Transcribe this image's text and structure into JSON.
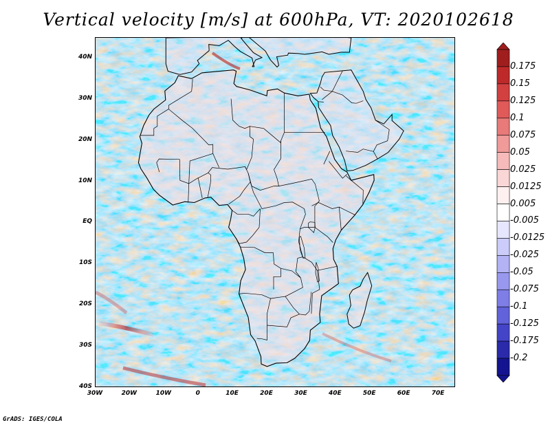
{
  "title": "Vertical velocity [m/s] at 600hPa, VT: 2020102618",
  "footer": "GrADS: IGES/COLA",
  "map": {
    "region": "Africa",
    "variable": "vertical velocity",
    "level": "600hPa",
    "lon_range": [
      -30,
      75
    ],
    "lat_range": [
      -40,
      45
    ],
    "lat_labels": [
      {
        "lat": 40,
        "label": "40N"
      },
      {
        "lat": 30,
        "label": "30N"
      },
      {
        "lat": 20,
        "label": "20N"
      },
      {
        "lat": 10,
        "label": "10N"
      },
      {
        "lat": 0,
        "label": "EQ"
      },
      {
        "lat": -10,
        "label": "10S"
      },
      {
        "lat": -20,
        "label": "20S"
      },
      {
        "lat": -30,
        "label": "30S"
      },
      {
        "lat": -40,
        "label": "40S"
      }
    ],
    "lon_labels": [
      {
        "lon": -30,
        "label": "30W"
      },
      {
        "lon": -20,
        "label": "20W"
      },
      {
        "lon": -10,
        "label": "10W"
      },
      {
        "lon": 0,
        "label": "0"
      },
      {
        "lon": 10,
        "label": "10E"
      },
      {
        "lon": 20,
        "label": "20E"
      },
      {
        "lon": 30,
        "label": "30E"
      },
      {
        "lon": 40,
        "label": "40E"
      },
      {
        "lon": 50,
        "label": "50E"
      },
      {
        "lon": 60,
        "label": "60E"
      },
      {
        "lon": 70,
        "label": "70E"
      }
    ]
  },
  "colorbar": {
    "labels": [
      "0.175",
      "0.15",
      "0.125",
      "0.1",
      "0.075",
      "0.05",
      "0.025",
      "0.0125",
      "0.005",
      "-0.005",
      "-0.0125",
      "-0.025",
      "-0.05",
      "-0.075",
      "-0.1",
      "-0.125",
      "-0.175",
      "-0.2"
    ],
    "colors": [
      "#a01e1e",
      "#be2a2a",
      "#d24040",
      "#e05a5a",
      "#e87a7a",
      "#f09a9a",
      "#f6baba",
      "#fad6d6",
      "#fff0f0",
      "#ffffff",
      "#e6e6ff",
      "#ccccfa",
      "#b2b2f4",
      "#9898ee",
      "#7e7ee6",
      "#6262da",
      "#4444c8",
      "#2a2aaa",
      "#141490"
    ]
  },
  "colors": {
    "frame": "#000000",
    "background_ocean": "#dcdcff",
    "land_tint": "#f2e4ec",
    "border_lines": "#000000"
  }
}
